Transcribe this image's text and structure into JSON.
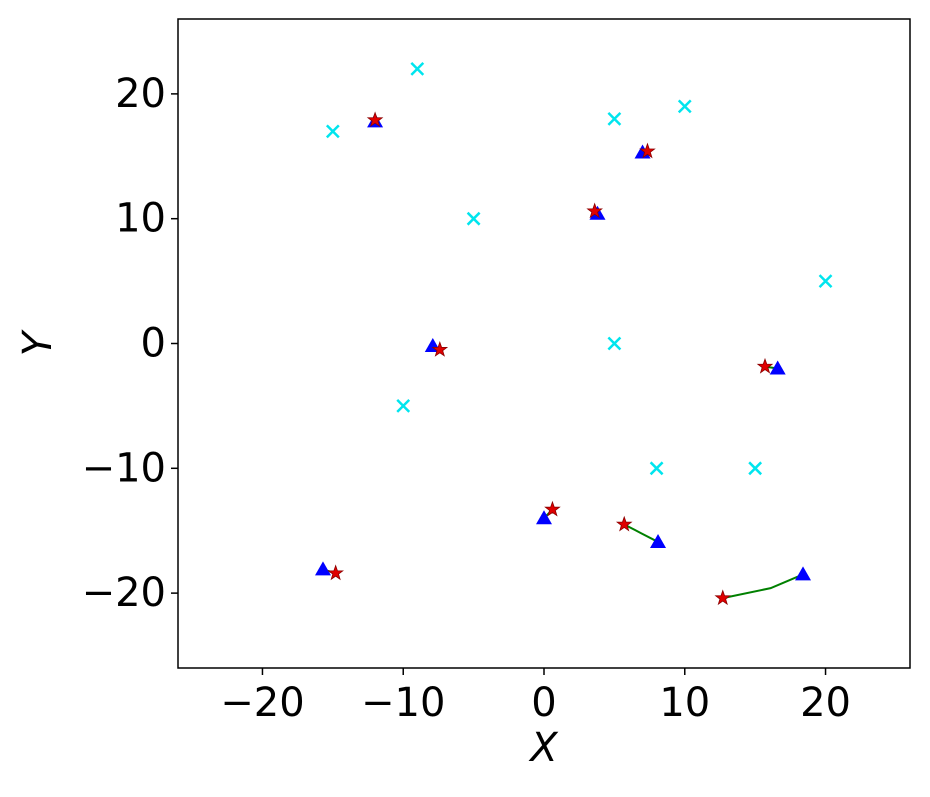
{
  "chart_data": {
    "type": "scatter",
    "x_label": "X",
    "y_label": "Y",
    "xlim": [
      -26,
      26
    ],
    "ylim": [
      -26,
      26
    ],
    "xticks": [
      {
        "value": -20,
        "label": "−20"
      },
      {
        "value": -10,
        "label": "−10"
      },
      0,
      10,
      20
    ],
    "yticks": [
      {
        "value": -20,
        "label": "−20"
      },
      {
        "value": -10,
        "label": "−10"
      },
      0,
      10,
      20
    ],
    "grid": false,
    "series": [
      {
        "marker": "x",
        "color": "#00e5ee",
        "x": [
          -15,
          -9,
          5,
          10,
          -5,
          20,
          5,
          -10,
          8,
          15
        ],
        "y": [
          17,
          22,
          18,
          19,
          10,
          5,
          0,
          -5,
          -10,
          -10
        ]
      },
      {
        "marker": "triangle",
        "color": "#0000ff",
        "x": [
          -12,
          7.0,
          3.8,
          -7.9,
          16.6,
          0,
          8.1,
          18.4,
          -15.7
        ],
        "y": [
          17.8,
          15.3,
          10.4,
          -0.2,
          -2.0,
          -14.0,
          -15.9,
          -18.5,
          -18.1
        ]
      },
      {
        "marker": "star",
        "color": "#e00000",
        "x": [
          -12,
          7.35,
          3.6,
          -7.4,
          15.7,
          0.6,
          5.7,
          12.7,
          -14.8
        ],
        "y": [
          17.9,
          15.4,
          10.6,
          -0.5,
          -1.85,
          -13.3,
          -14.5,
          -20.4,
          -18.4
        ]
      }
    ],
    "path_color": "#008000",
    "paths": [
      {
        "x": [
          -12,
          -12
        ],
        "y": [
          17.8,
          17.9
        ]
      },
      {
        "x": [
          7.0,
          7.35
        ],
        "y": [
          15.3,
          15.4
        ]
      },
      {
        "x": [
          3.8,
          3.6
        ],
        "y": [
          10.4,
          10.6
        ]
      },
      {
        "x": [
          -7.9,
          -7.4
        ],
        "y": [
          -0.2,
          -0.5
        ]
      },
      {
        "x": [
          16.6,
          15.7
        ],
        "y": [
          -2.0,
          -1.85
        ]
      },
      {
        "x": [
          0,
          0.6
        ],
        "y": [
          -14.0,
          -13.3
        ]
      },
      {
        "x": [
          8.1,
          6.9,
          5.7
        ],
        "y": [
          -15.9,
          -15.2,
          -14.5
        ]
      },
      {
        "x": [
          18.4,
          16.1,
          12.7
        ],
        "y": [
          -18.5,
          -19.6,
          -20.4
        ]
      },
      {
        "x": [
          -15.7,
          -14.8
        ],
        "y": [
          -18.1,
          -18.4
        ]
      }
    ]
  }
}
